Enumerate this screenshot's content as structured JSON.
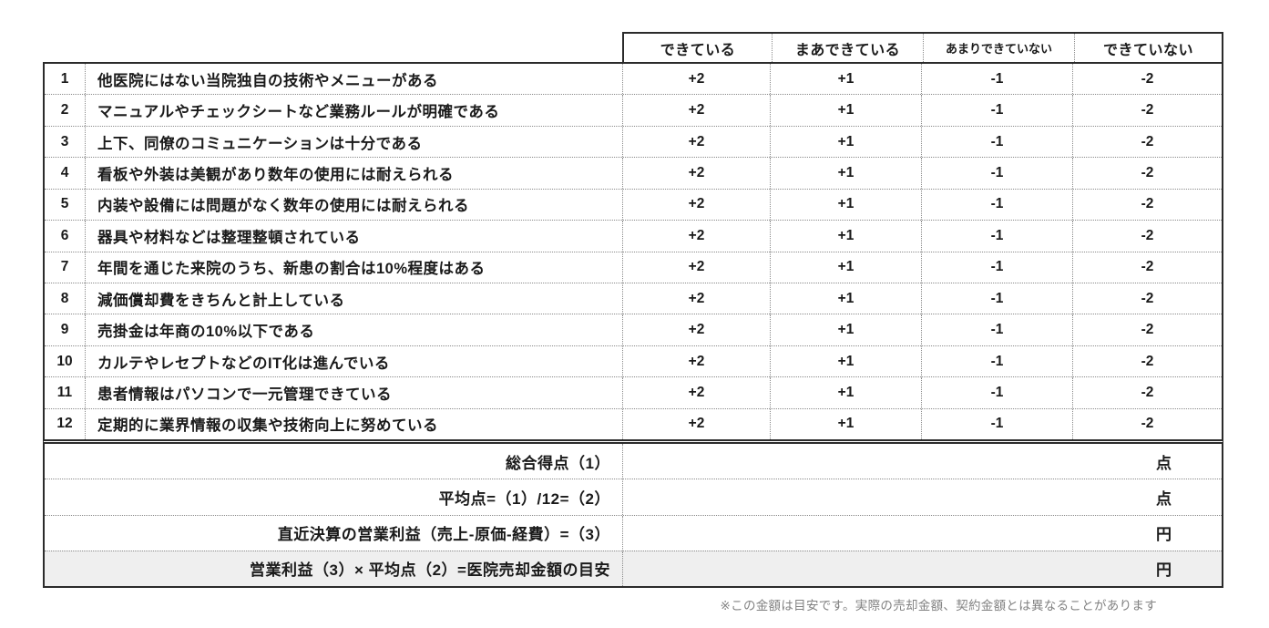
{
  "header": {
    "columns": [
      "できている",
      "まあできている",
      "あまりできていない",
      "できていない"
    ]
  },
  "rows": [
    {
      "num": "1",
      "text": "他医院にはない当院独自の技術やメニューがある",
      "scores": [
        "+2",
        "+1",
        "-1",
        "-2"
      ]
    },
    {
      "num": "2",
      "text": "マニュアルやチェックシートなど業務ルールが明確である",
      "scores": [
        "+2",
        "+1",
        "-1",
        "-2"
      ]
    },
    {
      "num": "3",
      "text": "上下、同僚のコミュニケーションは十分である",
      "scores": [
        "+2",
        "+1",
        "-1",
        "-2"
      ]
    },
    {
      "num": "4",
      "text": "看板や外装は美観があり数年の使用には耐えられる",
      "scores": [
        "+2",
        "+1",
        "-1",
        "-2"
      ]
    },
    {
      "num": "5",
      "text": "内装や設備には問題がなく数年の使用には耐えられる",
      "scores": [
        "+2",
        "+1",
        "-1",
        "-2"
      ]
    },
    {
      "num": "6",
      "text": "器具や材料などは整理整頓されている",
      "scores": [
        "+2",
        "+1",
        "-1",
        "-2"
      ]
    },
    {
      "num": "7",
      "text": "年間を通じた来院のうち、新患の割合は10%程度はある",
      "scores": [
        "+2",
        "+1",
        "-1",
        "-2"
      ]
    },
    {
      "num": "8",
      "text": "減価償却費をきちんと計上している",
      "scores": [
        "+2",
        "+1",
        "-1",
        "-2"
      ]
    },
    {
      "num": "9",
      "text": "売掛金は年商の10%以下である",
      "scores": [
        "+2",
        "+1",
        "-1",
        "-2"
      ]
    },
    {
      "num": "10",
      "text": "カルテやレセプトなどのIT化は進んでいる",
      "scores": [
        "+2",
        "+1",
        "-1",
        "-2"
      ]
    },
    {
      "num": "11",
      "text": "患者情報はパソコンで一元管理できている",
      "scores": [
        "+2",
        "+1",
        "-1",
        "-2"
      ]
    },
    {
      "num": "12",
      "text": "定期的に業界情報の収集や技術向上に努めている",
      "scores": [
        "+2",
        "+1",
        "-1",
        "-2"
      ]
    }
  ],
  "summary": [
    {
      "label": "総合得点（1）",
      "value": "",
      "unit": "点"
    },
    {
      "label": "平均点=（1）/12=（2）",
      "value": "",
      "unit": "点"
    },
    {
      "label": "直近決算の営業利益（売上-原価-経費）=（3）",
      "value": "",
      "unit": "円"
    },
    {
      "label": "営業利益（3）× 平均点（2）=医院売却金額の目安",
      "value": "",
      "unit": "円"
    }
  ],
  "footnote": "※この金額は目安です。実際の売却金額、契約金額とは異なることがあります",
  "colors": {
    "outer_border": "#2b2b2b",
    "inner_border": "#8a8a8a",
    "highlight_bg": "#efefef",
    "footnote_text": "#828282"
  }
}
